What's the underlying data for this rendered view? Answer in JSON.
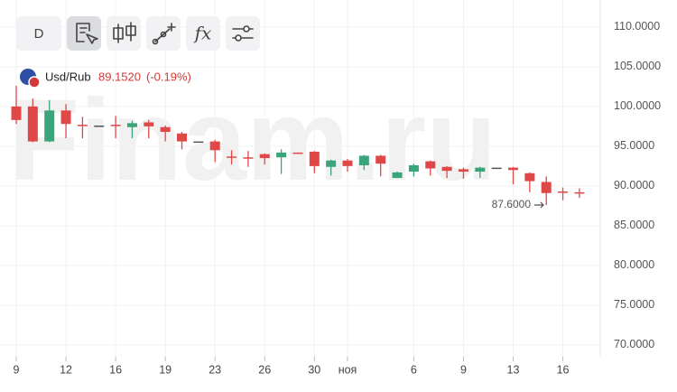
{
  "toolbar": {
    "period": "D",
    "function": "fx"
  },
  "chart_data": {
    "type": "candlestick",
    "watermark": "Finam.ru",
    "symbol": "Usd/Rub",
    "last_price": "89.1520",
    "change": "(-0.19%)",
    "categories": [
      "9",
      null,
      null,
      "12",
      null,
      null,
      "16",
      null,
      null,
      "19",
      null,
      null,
      "23",
      null,
      null,
      "26",
      null,
      null,
      "30",
      null,
      "ноя",
      null,
      null,
      null,
      "6",
      null,
      null,
      "9",
      null,
      null,
      "13",
      null,
      null,
      "16",
      null
    ],
    "open": [
      100,
      100,
      95.6,
      99.5,
      97.7,
      97.6,
      97.7,
      97.4,
      98,
      97.4,
      96.6,
      95.6,
      95.6,
      93.7,
      93.6,
      94,
      93.6,
      94.2,
      94.3,
      92.4,
      93.2,
      92.6,
      93.8,
      91,
      91.8,
      93.1,
      92.4,
      92.1,
      91.8,
      92.3,
      92.3,
      91.6,
      90.5,
      89.3,
      89.2
    ],
    "high": [
      102.6,
      101,
      100.8,
      100.3,
      98.7,
      97.6,
      98.8,
      98.2,
      98.3,
      97.6,
      96.8,
      95.6,
      95.8,
      94.5,
      94.4,
      94.1,
      94.6,
      94.2,
      94.4,
      93.3,
      93.4,
      93.9,
      93.9,
      91.8,
      92.8,
      93.2,
      92.5,
      92.3,
      92.4,
      92.3,
      92.4,
      91.7,
      91.2,
      89.8,
      89.7
    ],
    "low": [
      97.8,
      95.5,
      95.5,
      96,
      96,
      97.6,
      96,
      96,
      96,
      95.6,
      94.6,
      95.6,
      93,
      92.7,
      92.4,
      92.7,
      91.5,
      94.1,
      91.6,
      91.3,
      91.8,
      92,
      91.2,
      91,
      91.2,
      91.3,
      91,
      90.9,
      91,
      92.3,
      90.2,
      89.2,
      87.6,
      88.2,
      88.5
    ],
    "close": [
      98.3,
      95.6,
      99.5,
      97.8,
      97.6,
      97.6,
      97.6,
      97.9,
      97.5,
      96.8,
      95.6,
      95.6,
      94.5,
      93.6,
      93.5,
      93.5,
      94.2,
      94.1,
      92.5,
      93.2,
      92.5,
      93.8,
      92.8,
      91.7,
      92.6,
      92.2,
      91.9,
      91.8,
      92.3,
      92.3,
      92,
      90.6,
      89.1,
      89.2,
      89.15
    ],
    "up_color": "#3aa57a",
    "down_color": "#e04848",
    "flat_color": "#555555",
    "ylim": [
      68.5,
      113.4
    ],
    "yticks": [
      {
        "value": 70,
        "label": "70.0000"
      },
      {
        "value": 75,
        "label": "75.0000"
      },
      {
        "value": 80,
        "label": "80.0000"
      },
      {
        "value": 85,
        "label": "85.0000"
      },
      {
        "value": 90,
        "label": "90.0000"
      },
      {
        "value": 95,
        "label": "95.0000"
      },
      {
        "value": 100,
        "label": "100.0000"
      },
      {
        "value": 105,
        "label": "105.0000"
      },
      {
        "value": 110,
        "label": "110.0000"
      }
    ],
    "low_marker": {
      "value": 87.6,
      "label": "87.6000"
    },
    "grid": true
  }
}
